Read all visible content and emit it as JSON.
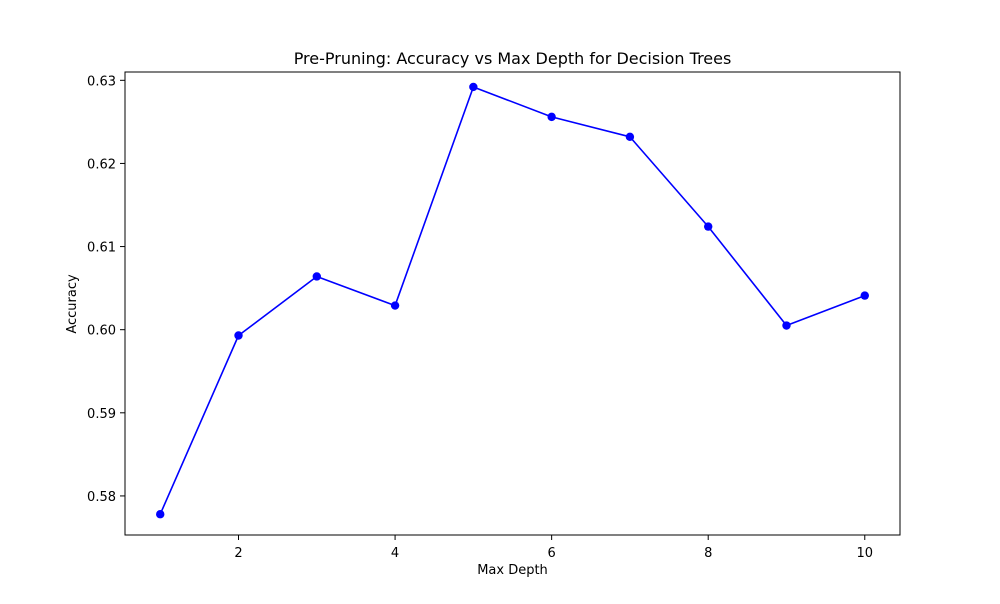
{
  "chart_data": {
    "type": "line",
    "title": "Pre-Pruning: Accuracy vs Max Depth for Decision Trees",
    "xlabel": "Max Depth",
    "ylabel": "Accuracy",
    "x": [
      1,
      2,
      3,
      4,
      5,
      6,
      7,
      8,
      9,
      10
    ],
    "series": [
      {
        "values": [
          0.5778,
          0.5993,
          0.6064,
          0.6029,
          0.6292,
          0.6256,
          0.6232,
          0.6124,
          0.6005,
          0.6041
        ],
        "color": "#0000ff",
        "marker": "circle"
      }
    ],
    "xlim": [
      0.55,
      10.45
    ],
    "ylim": [
      0.5753,
      0.631
    ],
    "xticks": [
      2,
      4,
      6,
      8,
      10
    ],
    "xtick_labels": [
      "2",
      "4",
      "6",
      "8",
      "10"
    ],
    "yticks": [
      0.58,
      0.59,
      0.6,
      0.61,
      0.62,
      0.63
    ],
    "ytick_labels": [
      "0.58",
      "0.59",
      "0.60",
      "0.61",
      "0.62",
      "0.63"
    ],
    "grid": false,
    "legend": false
  }
}
